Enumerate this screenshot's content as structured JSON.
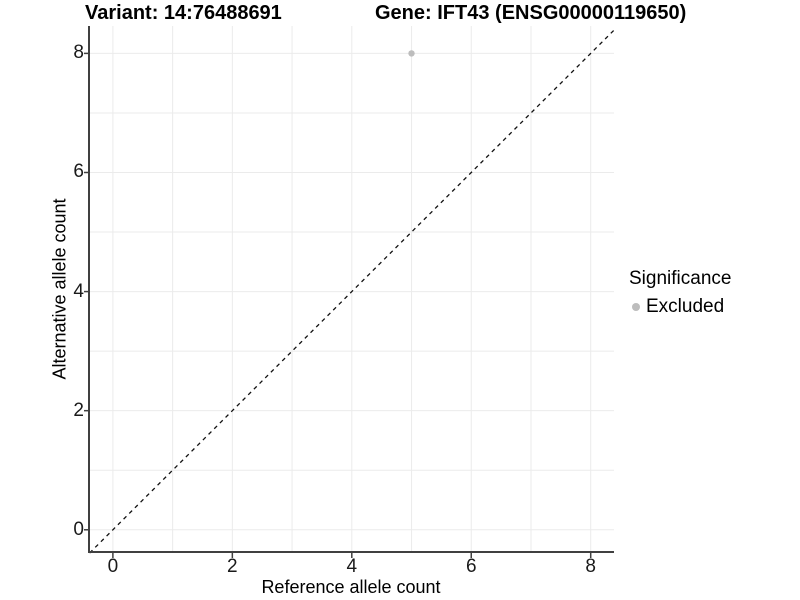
{
  "header": {
    "title_variant": "Variant: 14:76488691",
    "title_gene": "Gene: IFT43 (ENSG00000119650)"
  },
  "chart_data": {
    "type": "scatter",
    "title": "Variant: 14:76488691   Gene: IFT43 (ENSG00000119650)",
    "xlabel": "Reference allele count",
    "ylabel": "Alternative allele count",
    "xlim": [
      -0.4,
      8.39
    ],
    "ylim": [
      -0.39,
      8.46
    ],
    "xticks": [
      0,
      2,
      4,
      6,
      8
    ],
    "yticks": [
      0,
      2,
      4,
      6,
      8
    ],
    "grid": "on",
    "grid_every": 1,
    "grid_range": [
      0,
      8
    ],
    "series": [
      {
        "name": "Excluded",
        "color": "#bdbdbd",
        "points": [
          {
            "x": 5,
            "y": 8
          }
        ]
      }
    ],
    "identity_line": {
      "type": "y=x",
      "style": "dashed",
      "color": "#111111",
      "from": -0.39,
      "to": 8.39
    },
    "legend": {
      "title": "Significance",
      "position": "right",
      "items": [
        {
          "label": "Excluded",
          "color": "#bdbdbd",
          "marker": "circle"
        }
      ]
    }
  },
  "style": {
    "axis_color": "#404040",
    "tick_color": "#404040",
    "grid_color": "#ebebeb",
    "text_color": "#1a1a1a"
  }
}
